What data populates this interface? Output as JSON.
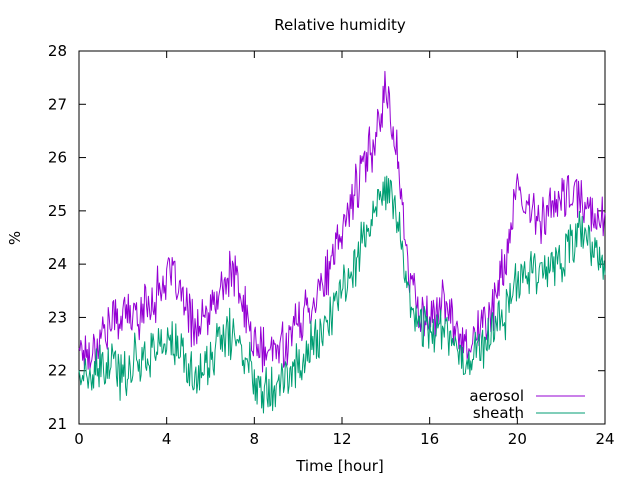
{
  "chart_data": {
    "type": "line",
    "title": "Relative humidity",
    "xlabel": "Time [hour]",
    "ylabel": "%",
    "xlim": [
      0,
      24
    ],
    "ylim": [
      21,
      28
    ],
    "xticks": [
      0,
      4,
      8,
      12,
      16,
      20,
      24
    ],
    "yticks": [
      21,
      22,
      23,
      24,
      25,
      26,
      27,
      28
    ],
    "grid": false,
    "legend_position": "bottom-right",
    "series": [
      {
        "name": "aerosol",
        "color": "#9400d3",
        "x": [
          0,
          0.5,
          1,
          1.5,
          2,
          2.5,
          3,
          3.5,
          4,
          4.5,
          5,
          5.5,
          6,
          6.5,
          7,
          7.5,
          8,
          8.5,
          9,
          9.5,
          10,
          10.5,
          11,
          11.5,
          12,
          12.5,
          13,
          13.5,
          14,
          14.5,
          15,
          15.5,
          16,
          16.5,
          17,
          17.5,
          18,
          18.5,
          19,
          19.5,
          20,
          20.5,
          21,
          21.5,
          22,
          22.5,
          23,
          23.5,
          24
        ],
        "values": [
          22.5,
          22.3,
          22.7,
          22.9,
          23.1,
          23.0,
          23.2,
          23.4,
          23.8,
          23.6,
          23.0,
          22.8,
          23.1,
          23.5,
          23.9,
          23.2,
          22.5,
          22.3,
          22.4,
          22.6,
          22.9,
          23.2,
          23.6,
          23.9,
          24.6,
          25.3,
          25.8,
          26.4,
          27.3,
          26.2,
          23.9,
          23.2,
          22.9,
          23.3,
          23.0,
          22.6,
          22.6,
          22.9,
          23.3,
          24.2,
          25.3,
          25.0,
          24.9,
          25.0,
          25.2,
          25.3,
          25.1,
          25.0,
          24.9
        ]
      },
      {
        "name": "sheath",
        "color": "#009e73",
        "x": [
          0,
          0.5,
          1,
          1.5,
          2,
          2.5,
          3,
          3.5,
          4,
          4.5,
          5,
          5.5,
          6,
          6.5,
          7,
          7.5,
          8,
          8.5,
          9,
          9.5,
          10,
          10.5,
          11,
          11.5,
          12,
          12.5,
          13,
          13.5,
          14,
          14.5,
          15,
          15.5,
          16,
          16.5,
          17,
          17.5,
          18,
          18.5,
          19,
          19.5,
          20,
          20.5,
          21,
          21.5,
          22,
          22.5,
          23,
          23.5,
          24
        ],
        "values": [
          22.0,
          21.8,
          22.0,
          22.1,
          21.9,
          22.2,
          22.3,
          22.4,
          22.6,
          22.4,
          22.0,
          21.9,
          22.2,
          22.6,
          22.7,
          22.3,
          21.9,
          21.7,
          21.8,
          21.9,
          22.1,
          22.4,
          22.7,
          23.0,
          23.5,
          24.0,
          24.5,
          24.9,
          25.4,
          25.0,
          23.5,
          22.9,
          22.8,
          22.9,
          22.6,
          22.2,
          22.3,
          22.6,
          22.8,
          23.1,
          23.8,
          23.9,
          24.0,
          23.9,
          24.1,
          24.4,
          24.6,
          24.2,
          23.9
        ]
      }
    ]
  }
}
